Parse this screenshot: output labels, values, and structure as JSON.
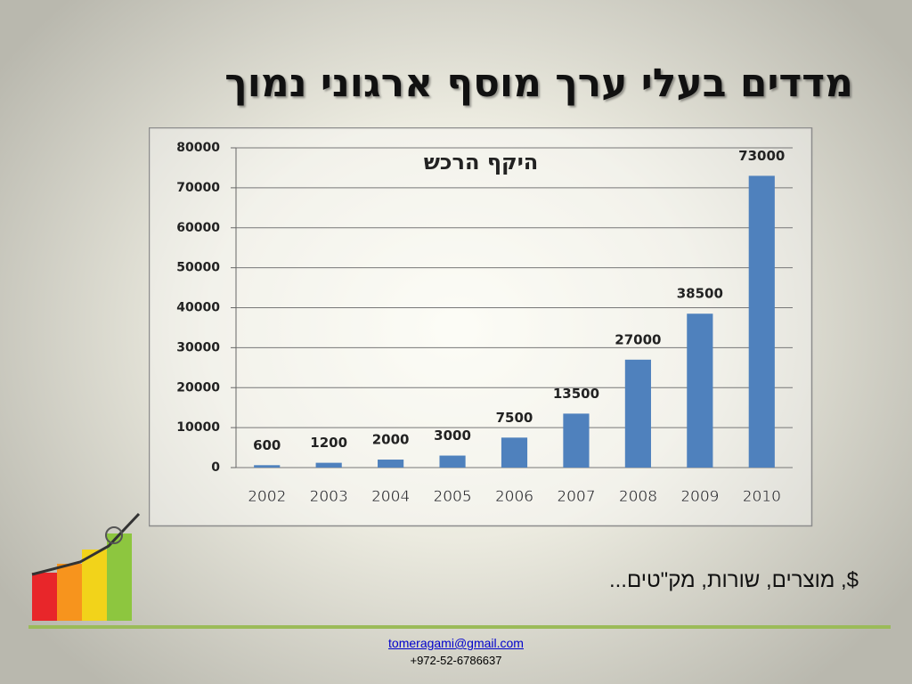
{
  "slide": {
    "title": "מדדים בעלי ערך מוסף ארגוני נמוך",
    "caption": "$, מוצרים, שורות, מק\"טים...",
    "email": "tomeragami@gmail.com",
    "phone": "+972-52-6786637"
  },
  "chart_data": {
    "type": "bar",
    "title": "היקף הרכש",
    "categories": [
      "2002",
      "2003",
      "2004",
      "2005",
      "2006",
      "2007",
      "2008",
      "2009",
      "2010"
    ],
    "values": [
      600,
      1200,
      2000,
      3000,
      7500,
      13500,
      27000,
      38500,
      73000
    ],
    "color": "#4f81bd",
    "ylim": [
      0,
      80000
    ],
    "yticks": [
      0,
      10000,
      20000,
      30000,
      40000,
      50000,
      60000,
      70000,
      80000
    ],
    "grid": true
  }
}
